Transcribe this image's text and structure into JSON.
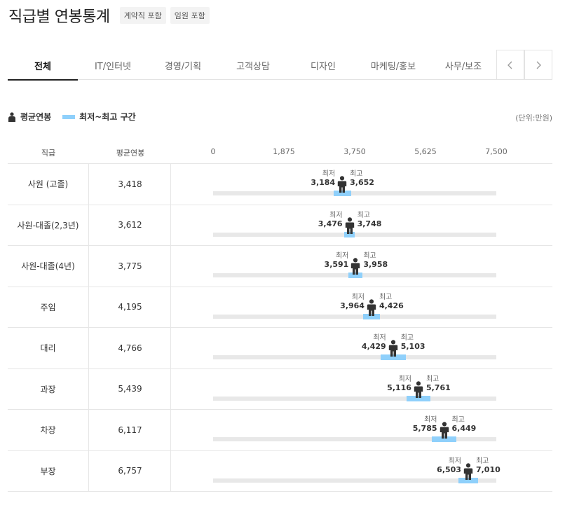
{
  "header": {
    "title": "직급별 연봉통계",
    "badges": [
      "계약직 포함",
      "임원 포함"
    ]
  },
  "tabs": [
    {
      "label": "전체",
      "active": true
    },
    {
      "label": "IT/인터넷",
      "active": false
    },
    {
      "label": "경영/기획",
      "active": false
    },
    {
      "label": "고객상담",
      "active": false
    },
    {
      "label": "디자인",
      "active": false
    },
    {
      "label": "마케팅/홍보",
      "active": false
    },
    {
      "label": "사무/보조",
      "active": false
    }
  ],
  "legend": {
    "avg_label": "평균연봉",
    "range_label": "최저~최고 구간",
    "unit": "(단위:만원)",
    "range_color": "#8fd0fb"
  },
  "table": {
    "col_grade": "직급",
    "col_avg": "평균연봉",
    "min_caption": "최저",
    "max_caption": "최고"
  },
  "chart_data": {
    "type": "table",
    "x_ticks": [
      "0",
      "1,875",
      "3,750",
      "5,625",
      "7,500"
    ],
    "xlim": [
      0,
      7500
    ],
    "rows": [
      {
        "grade": "사원 (고졸)",
        "avg": 3418,
        "avg_label": "3,418",
        "min": 3184,
        "min_label": "3,184",
        "max": 3652,
        "max_label": "3,652"
      },
      {
        "grade": "사원-대졸(2,3년)",
        "avg": 3612,
        "avg_label": "3,612",
        "min": 3476,
        "min_label": "3,476",
        "max": 3748,
        "max_label": "3,748"
      },
      {
        "grade": "사원-대졸(4년)",
        "avg": 3775,
        "avg_label": "3,775",
        "min": 3591,
        "min_label": "3,591",
        "max": 3958,
        "max_label": "3,958"
      },
      {
        "grade": "주임",
        "avg": 4195,
        "avg_label": "4,195",
        "min": 3964,
        "min_label": "3,964",
        "max": 4426,
        "max_label": "4,426"
      },
      {
        "grade": "대리",
        "avg": 4766,
        "avg_label": "4,766",
        "min": 4429,
        "min_label": "4,429",
        "max": 5103,
        "max_label": "5,103"
      },
      {
        "grade": "과장",
        "avg": 5439,
        "avg_label": "5,439",
        "min": 5116,
        "min_label": "5,116",
        "max": 5761,
        "max_label": "5,761"
      },
      {
        "grade": "차장",
        "avg": 6117,
        "avg_label": "6,117",
        "min": 5785,
        "min_label": "5,785",
        "max": 6449,
        "max_label": "6,449"
      },
      {
        "grade": "부장",
        "avg": 6757,
        "avg_label": "6,757",
        "min": 6503,
        "min_label": "6,503",
        "max": 7010,
        "max_label": "7,010"
      }
    ]
  }
}
